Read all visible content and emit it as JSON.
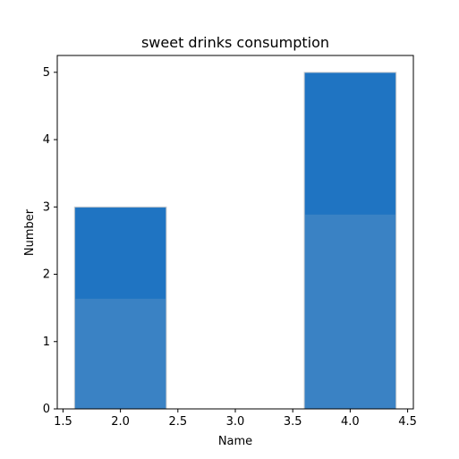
{
  "chart_data": {
    "type": "bar",
    "title": "sweet drinks consumption",
    "xlabel": "Name",
    "ylabel": "Number",
    "xlim": [
      1.45,
      4.55
    ],
    "ylim": [
      0,
      5.25
    ],
    "xticks": [
      "1.5",
      "2.0",
      "2.5",
      "3.0",
      "3.5",
      "4.0",
      "4.5"
    ],
    "yticks": [
      "0",
      "1",
      "2",
      "3",
      "4",
      "5"
    ],
    "bar_width": 0.8,
    "color": "#3a82c4",
    "bars": [
      {
        "x": 2,
        "value": 3
      },
      {
        "x": 4,
        "value": 5
      }
    ],
    "grid": false,
    "legend": "none"
  }
}
